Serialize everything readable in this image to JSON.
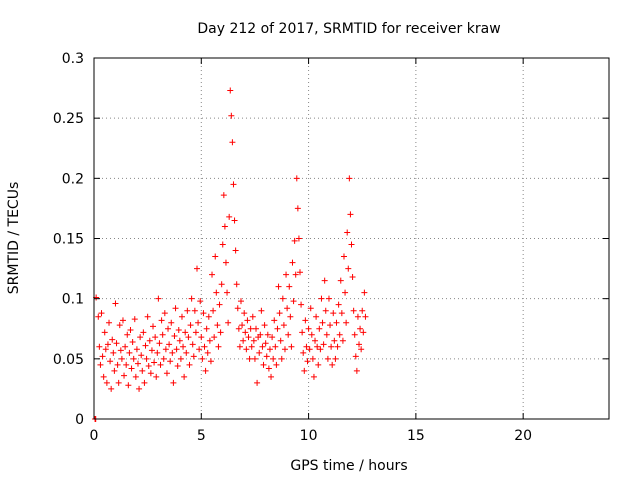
{
  "chart_data": {
    "type": "scatter",
    "title": "Day 212 of 2017, SRMTID for receiver kraw",
    "xlabel": "GPS time / hours",
    "ylabel": "SRMTID / TECUs",
    "xlim": [
      0,
      24
    ],
    "ylim": [
      0,
      0.3
    ],
    "xticks": [
      0,
      5,
      10,
      15,
      20
    ],
    "yticks": [
      0,
      0.05,
      0.1,
      0.15,
      0.2,
      0.25,
      0.3
    ],
    "xtick_labels": [
      "0",
      "5",
      "10",
      "15",
      "20"
    ],
    "ytick_labels": [
      "0",
      "0.05",
      "0.1",
      "0.15",
      "0.2",
      "0.25",
      "0.3"
    ],
    "grid": true,
    "marker": "+",
    "color": "#ff0000",
    "series": [
      {
        "name": "SRMTID",
        "points": [
          [
            0.05,
            0.0
          ],
          [
            0.08,
            0.0
          ],
          [
            0.1,
            0.101
          ],
          [
            0.2,
            0.085
          ],
          [
            0.25,
            0.06
          ],
          [
            0.3,
            0.045
          ],
          [
            0.35,
            0.088
          ],
          [
            0.4,
            0.052
          ],
          [
            0.45,
            0.035
          ],
          [
            0.5,
            0.072
          ],
          [
            0.55,
            0.058
          ],
          [
            0.6,
            0.03
          ],
          [
            0.65,
            0.062
          ],
          [
            0.7,
            0.08
          ],
          [
            0.75,
            0.048
          ],
          [
            0.8,
            0.025
          ],
          [
            0.85,
            0.066
          ],
          [
            0.9,
            0.055
          ],
          [
            0.95,
            0.04
          ],
          [
            1.0,
            0.096
          ],
          [
            1.05,
            0.063
          ],
          [
            1.1,
            0.045
          ],
          [
            1.15,
            0.03
          ],
          [
            1.2,
            0.078
          ],
          [
            1.25,
            0.057
          ],
          [
            1.3,
            0.05
          ],
          [
            1.35,
            0.082
          ],
          [
            1.4,
            0.036
          ],
          [
            1.45,
            0.06
          ],
          [
            1.5,
            0.045
          ],
          [
            1.55,
            0.07
          ],
          [
            1.6,
            0.028
          ],
          [
            1.65,
            0.055
          ],
          [
            1.7,
            0.074
          ],
          [
            1.75,
            0.042
          ],
          [
            1.8,
            0.064
          ],
          [
            1.85,
            0.05
          ],
          [
            1.9,
            0.083
          ],
          [
            1.95,
            0.035
          ],
          [
            2.0,
            0.058
          ],
          [
            2.05,
            0.046
          ],
          [
            2.1,
            0.025
          ],
          [
            2.15,
            0.068
          ],
          [
            2.2,
            0.053
          ],
          [
            2.25,
            0.04
          ],
          [
            2.3,
            0.072
          ],
          [
            2.35,
            0.03
          ],
          [
            2.4,
            0.061
          ],
          [
            2.45,
            0.05
          ],
          [
            2.5,
            0.085
          ],
          [
            2.55,
            0.044
          ],
          [
            2.6,
            0.065
          ],
          [
            2.65,
            0.038
          ],
          [
            2.7,
            0.057
          ],
          [
            2.75,
            0.077
          ],
          [
            2.8,
            0.047
          ],
          [
            2.85,
            0.068
          ],
          [
            2.9,
            0.035
          ],
          [
            2.95,
            0.055
          ],
          [
            3.0,
            0.1
          ],
          [
            3.05,
            0.063
          ],
          [
            3.1,
            0.045
          ],
          [
            3.15,
            0.082
          ],
          [
            3.2,
            0.07
          ],
          [
            3.25,
            0.05
          ],
          [
            3.3,
            0.088
          ],
          [
            3.35,
            0.058
          ],
          [
            3.4,
            0.038
          ],
          [
            3.45,
            0.075
          ],
          [
            3.5,
            0.062
          ],
          [
            3.55,
            0.048
          ],
          [
            3.6,
            0.08
          ],
          [
            3.65,
            0.055
          ],
          [
            3.7,
            0.03
          ],
          [
            3.75,
            0.069
          ],
          [
            3.8,
            0.092
          ],
          [
            3.85,
            0.058
          ],
          [
            3.9,
            0.044
          ],
          [
            3.95,
            0.074
          ],
          [
            4.0,
            0.065
          ],
          [
            4.05,
            0.05
          ],
          [
            4.1,
            0.085
          ],
          [
            4.15,
            0.06
          ],
          [
            4.2,
            0.035
          ],
          [
            4.25,
            0.072
          ],
          [
            4.3,
            0.055
          ],
          [
            4.35,
            0.09
          ],
          [
            4.4,
            0.068
          ],
          [
            4.45,
            0.045
          ],
          [
            4.5,
            0.078
          ],
          [
            4.55,
            0.1
          ],
          [
            4.6,
            0.062
          ],
          [
            4.65,
            0.052
          ],
          [
            4.7,
            0.09
          ],
          [
            4.75,
            0.072
          ],
          [
            4.8,
            0.125
          ],
          [
            4.85,
            0.08
          ],
          [
            4.9,
            0.058
          ],
          [
            4.95,
            0.098
          ],
          [
            5.0,
            0.068
          ],
          [
            5.05,
            0.05
          ],
          [
            5.1,
            0.088
          ],
          [
            5.15,
            0.06
          ],
          [
            5.2,
            0.04
          ],
          [
            5.25,
            0.075
          ],
          [
            5.3,
            0.055
          ],
          [
            5.35,
            0.085
          ],
          [
            5.4,
            0.065
          ],
          [
            5.45,
            0.048
          ],
          [
            5.5,
            0.12
          ],
          [
            5.55,
            0.09
          ],
          [
            5.6,
            0.068
          ],
          [
            5.65,
            0.135
          ],
          [
            5.7,
            0.105
          ],
          [
            5.75,
            0.078
          ],
          [
            5.8,
            0.06
          ],
          [
            5.85,
            0.095
          ],
          [
            5.9,
            0.072
          ],
          [
            5.95,
            0.112
          ],
          [
            6.0,
            0.145
          ],
          [
            6.05,
            0.186
          ],
          [
            6.1,
            0.16
          ],
          [
            6.15,
            0.13
          ],
          [
            6.2,
            0.105
          ],
          [
            6.25,
            0.08
          ],
          [
            6.3,
            0.168
          ],
          [
            6.35,
            0.273
          ],
          [
            6.4,
            0.252
          ],
          [
            6.45,
            0.23
          ],
          [
            6.5,
            0.195
          ],
          [
            6.55,
            0.165
          ],
          [
            6.6,
            0.14
          ],
          [
            6.65,
            0.112
          ],
          [
            6.7,
            0.092
          ],
          [
            6.75,
            0.075
          ],
          [
            6.8,
            0.06
          ],
          [
            6.85,
            0.098
          ],
          [
            6.9,
            0.078
          ],
          [
            6.95,
            0.065
          ],
          [
            7.0,
            0.088
          ],
          [
            7.05,
            0.072
          ],
          [
            7.1,
            0.058
          ],
          [
            7.15,
            0.082
          ],
          [
            7.2,
            0.068
          ],
          [
            7.25,
            0.05
          ],
          [
            7.3,
            0.075
          ],
          [
            7.35,
            0.06
          ],
          [
            7.4,
            0.085
          ],
          [
            7.45,
            0.065
          ],
          [
            7.5,
            0.05
          ],
          [
            7.55,
            0.075
          ],
          [
            7.6,
            0.03
          ],
          [
            7.65,
            0.068
          ],
          [
            7.7,
            0.055
          ],
          [
            7.75,
            0.07
          ],
          [
            7.8,
            0.09
          ],
          [
            7.85,
            0.06
          ],
          [
            7.9,
            0.045
          ],
          [
            7.95,
            0.078
          ],
          [
            8.0,
            0.063
          ],
          [
            8.05,
            0.052
          ],
          [
            8.1,
            0.07
          ],
          [
            8.15,
            0.042
          ],
          [
            8.2,
            0.058
          ],
          [
            8.25,
            0.035
          ],
          [
            8.3,
            0.068
          ],
          [
            8.35,
            0.05
          ],
          [
            8.4,
            0.082
          ],
          [
            8.45,
            0.06
          ],
          [
            8.5,
            0.045
          ],
          [
            8.55,
            0.075
          ],
          [
            8.6,
            0.11
          ],
          [
            8.65,
            0.088
          ],
          [
            8.7,
            0.065
          ],
          [
            8.75,
            0.05
          ],
          [
            8.8,
            0.1
          ],
          [
            8.85,
            0.078
          ],
          [
            8.9,
            0.058
          ],
          [
            8.95,
            0.12
          ],
          [
            9.0,
            0.092
          ],
          [
            9.05,
            0.07
          ],
          [
            9.1,
            0.11
          ],
          [
            9.15,
            0.085
          ],
          [
            9.2,
            0.06
          ],
          [
            9.25,
            0.13
          ],
          [
            9.3,
            0.098
          ],
          [
            9.35,
            0.148
          ],
          [
            9.4,
            0.12
          ],
          [
            9.45,
            0.2
          ],
          [
            9.5,
            0.175
          ],
          [
            9.55,
            0.15
          ],
          [
            9.6,
            0.122
          ],
          [
            9.65,
            0.095
          ],
          [
            9.7,
            0.072
          ],
          [
            9.75,
            0.055
          ],
          [
            9.8,
            0.04
          ],
          [
            9.85,
            0.082
          ],
          [
            9.9,
            0.06
          ],
          [
            9.95,
            0.048
          ],
          [
            10.0,
            0.075
          ],
          [
            10.05,
            0.058
          ],
          [
            10.1,
            0.092
          ],
          [
            10.15,
            0.07
          ],
          [
            10.2,
            0.05
          ],
          [
            10.25,
            0.035
          ],
          [
            10.3,
            0.065
          ],
          [
            10.35,
            0.085
          ],
          [
            10.4,
            0.06
          ],
          [
            10.45,
            0.045
          ],
          [
            10.5,
            0.075
          ],
          [
            10.55,
            0.058
          ],
          [
            10.6,
            0.1
          ],
          [
            10.65,
            0.08
          ],
          [
            10.7,
            0.062
          ],
          [
            10.75,
            0.115
          ],
          [
            10.8,
            0.09
          ],
          [
            10.85,
            0.07
          ],
          [
            10.9,
            0.05
          ],
          [
            10.95,
            0.1
          ],
          [
            11.0,
            0.078
          ],
          [
            11.05,
            0.06
          ],
          [
            11.1,
            0.045
          ],
          [
            11.15,
            0.088
          ],
          [
            11.2,
            0.065
          ],
          [
            11.25,
            0.05
          ],
          [
            11.3,
            0.08
          ],
          [
            11.35,
            0.06
          ],
          [
            11.4,
            0.095
          ],
          [
            11.45,
            0.07
          ],
          [
            11.5,
            0.115
          ],
          [
            11.55,
            0.088
          ],
          [
            11.6,
            0.065
          ],
          [
            11.65,
            0.135
          ],
          [
            11.7,
            0.105
          ],
          [
            11.75,
            0.08
          ],
          [
            11.8,
            0.155
          ],
          [
            11.85,
            0.125
          ],
          [
            11.9,
            0.2
          ],
          [
            11.95,
            0.17
          ],
          [
            12.0,
            0.145
          ],
          [
            12.05,
            0.118
          ],
          [
            12.1,
            0.09
          ],
          [
            12.15,
            0.07
          ],
          [
            12.2,
            0.052
          ],
          [
            12.25,
            0.04
          ],
          [
            12.3,
            0.085
          ],
          [
            12.35,
            0.062
          ],
          [
            12.4,
            0.075
          ],
          [
            12.45,
            0.058
          ],
          [
            12.5,
            0.09
          ],
          [
            12.55,
            0.072
          ],
          [
            12.6,
            0.105
          ],
          [
            12.65,
            0.085
          ]
        ]
      }
    ]
  }
}
